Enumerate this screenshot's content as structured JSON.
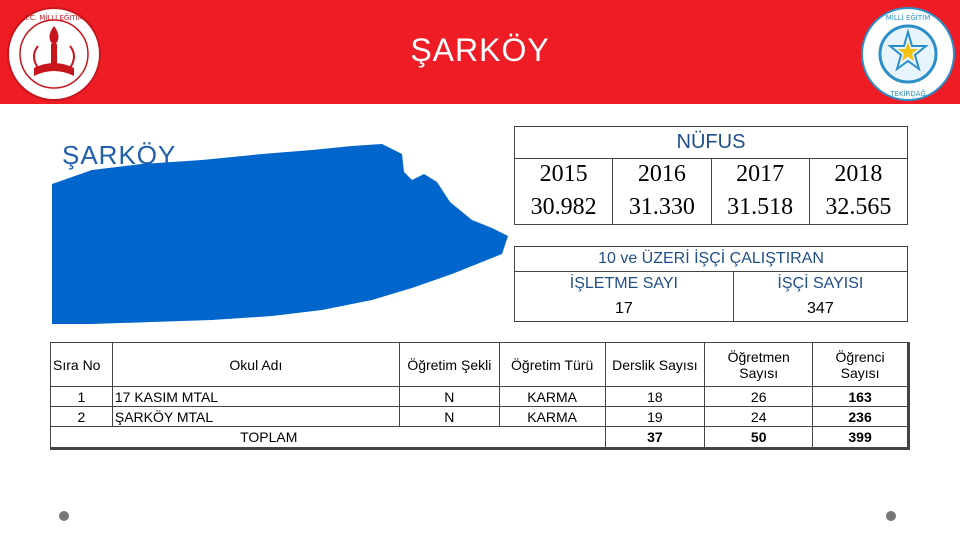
{
  "header": {
    "title": "ŞARKÖY",
    "bg_color": "#ee1c25",
    "left_logo": {
      "icon": "ministry-of-education-logo-icon",
      "text": "T.C. MİLLİ EĞİTİM BAKANLIĞI"
    },
    "right_logo": {
      "icon": "provincial-education-directorate-logo-icon",
      "text": "İL MİLLİ EĞİTİM MÜDÜRLÜĞÜ TEKİRDAĞ"
    }
  },
  "map": {
    "label": "ŞARKÖY",
    "color": "#0066cc",
    "icon": "district-map-icon"
  },
  "population": {
    "title": "NÜFUS",
    "years": [
      "2015",
      "2016",
      "2017",
      "2018"
    ],
    "values": [
      "30.982",
      "31.330",
      "31.518",
      "32.565"
    ]
  },
  "workplaces": {
    "title": "10 ve ÜZERİ İŞÇİ ÇALIŞTIRAN",
    "col1_label": "İŞLETME SAYI",
    "col2_label": "İŞÇİ SAYISI",
    "col1_value": "17",
    "col2_value": "347"
  },
  "schools": {
    "headers": [
      "Sıra No",
      "Okul Adı",
      "Öğretim Şekli",
      "Öğretim Türü",
      "Derslik Sayısı",
      "Öğretmen Sayısı",
      "Öğrenci Sayısı"
    ],
    "rows": [
      [
        "1",
        "17 KASIM MTAL",
        "N",
        "KARMA",
        "18",
        "26",
        "163"
      ],
      [
        "2",
        "ŞARKÖY MTAL",
        "N",
        "KARMA",
        "19",
        "24",
        "236"
      ]
    ],
    "total_label": "TOPLAM",
    "totals": [
      "37",
      "50",
      "399"
    ]
  },
  "nav_dots": [
    "nav-dot-icon",
    "nav-dot-icon"
  ]
}
